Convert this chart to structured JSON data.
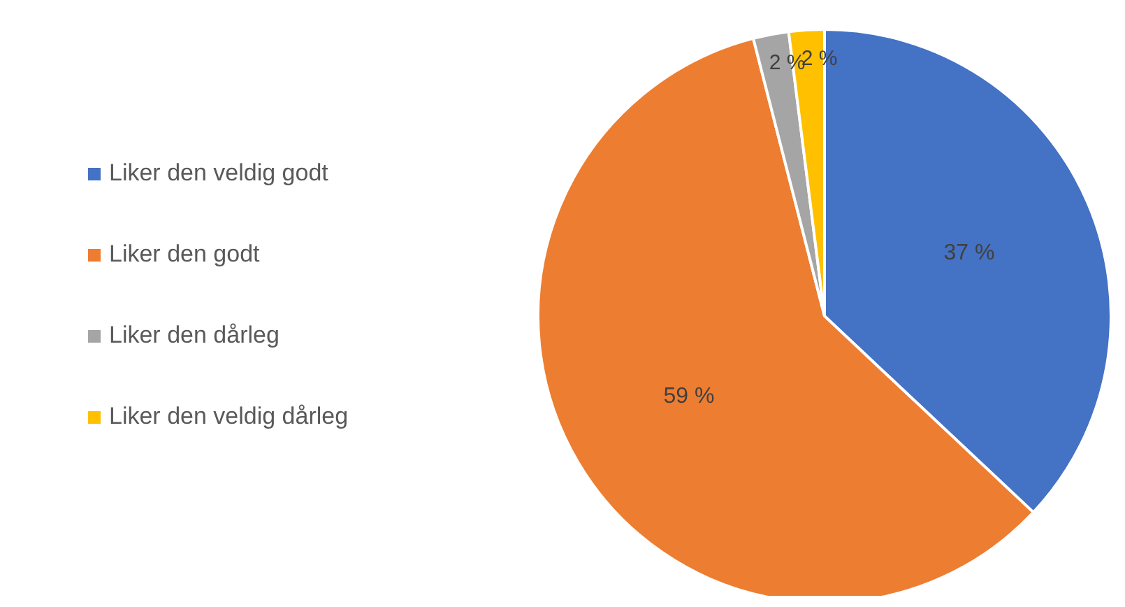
{
  "chart_data": {
    "type": "pie",
    "categories": [
      "Liker den veldig godt",
      "Liker den godt",
      "Liker den dårleg",
      "Liker den veldig dårleg"
    ],
    "values": [
      37,
      59,
      2,
      2
    ],
    "colors": [
      "#4472c4",
      "#ed7d31",
      "#a5a5a5",
      "#ffc000"
    ],
    "value_labels": [
      "37 %",
      "59 %",
      "2 %",
      "2 %"
    ],
    "legend": "left"
  }
}
